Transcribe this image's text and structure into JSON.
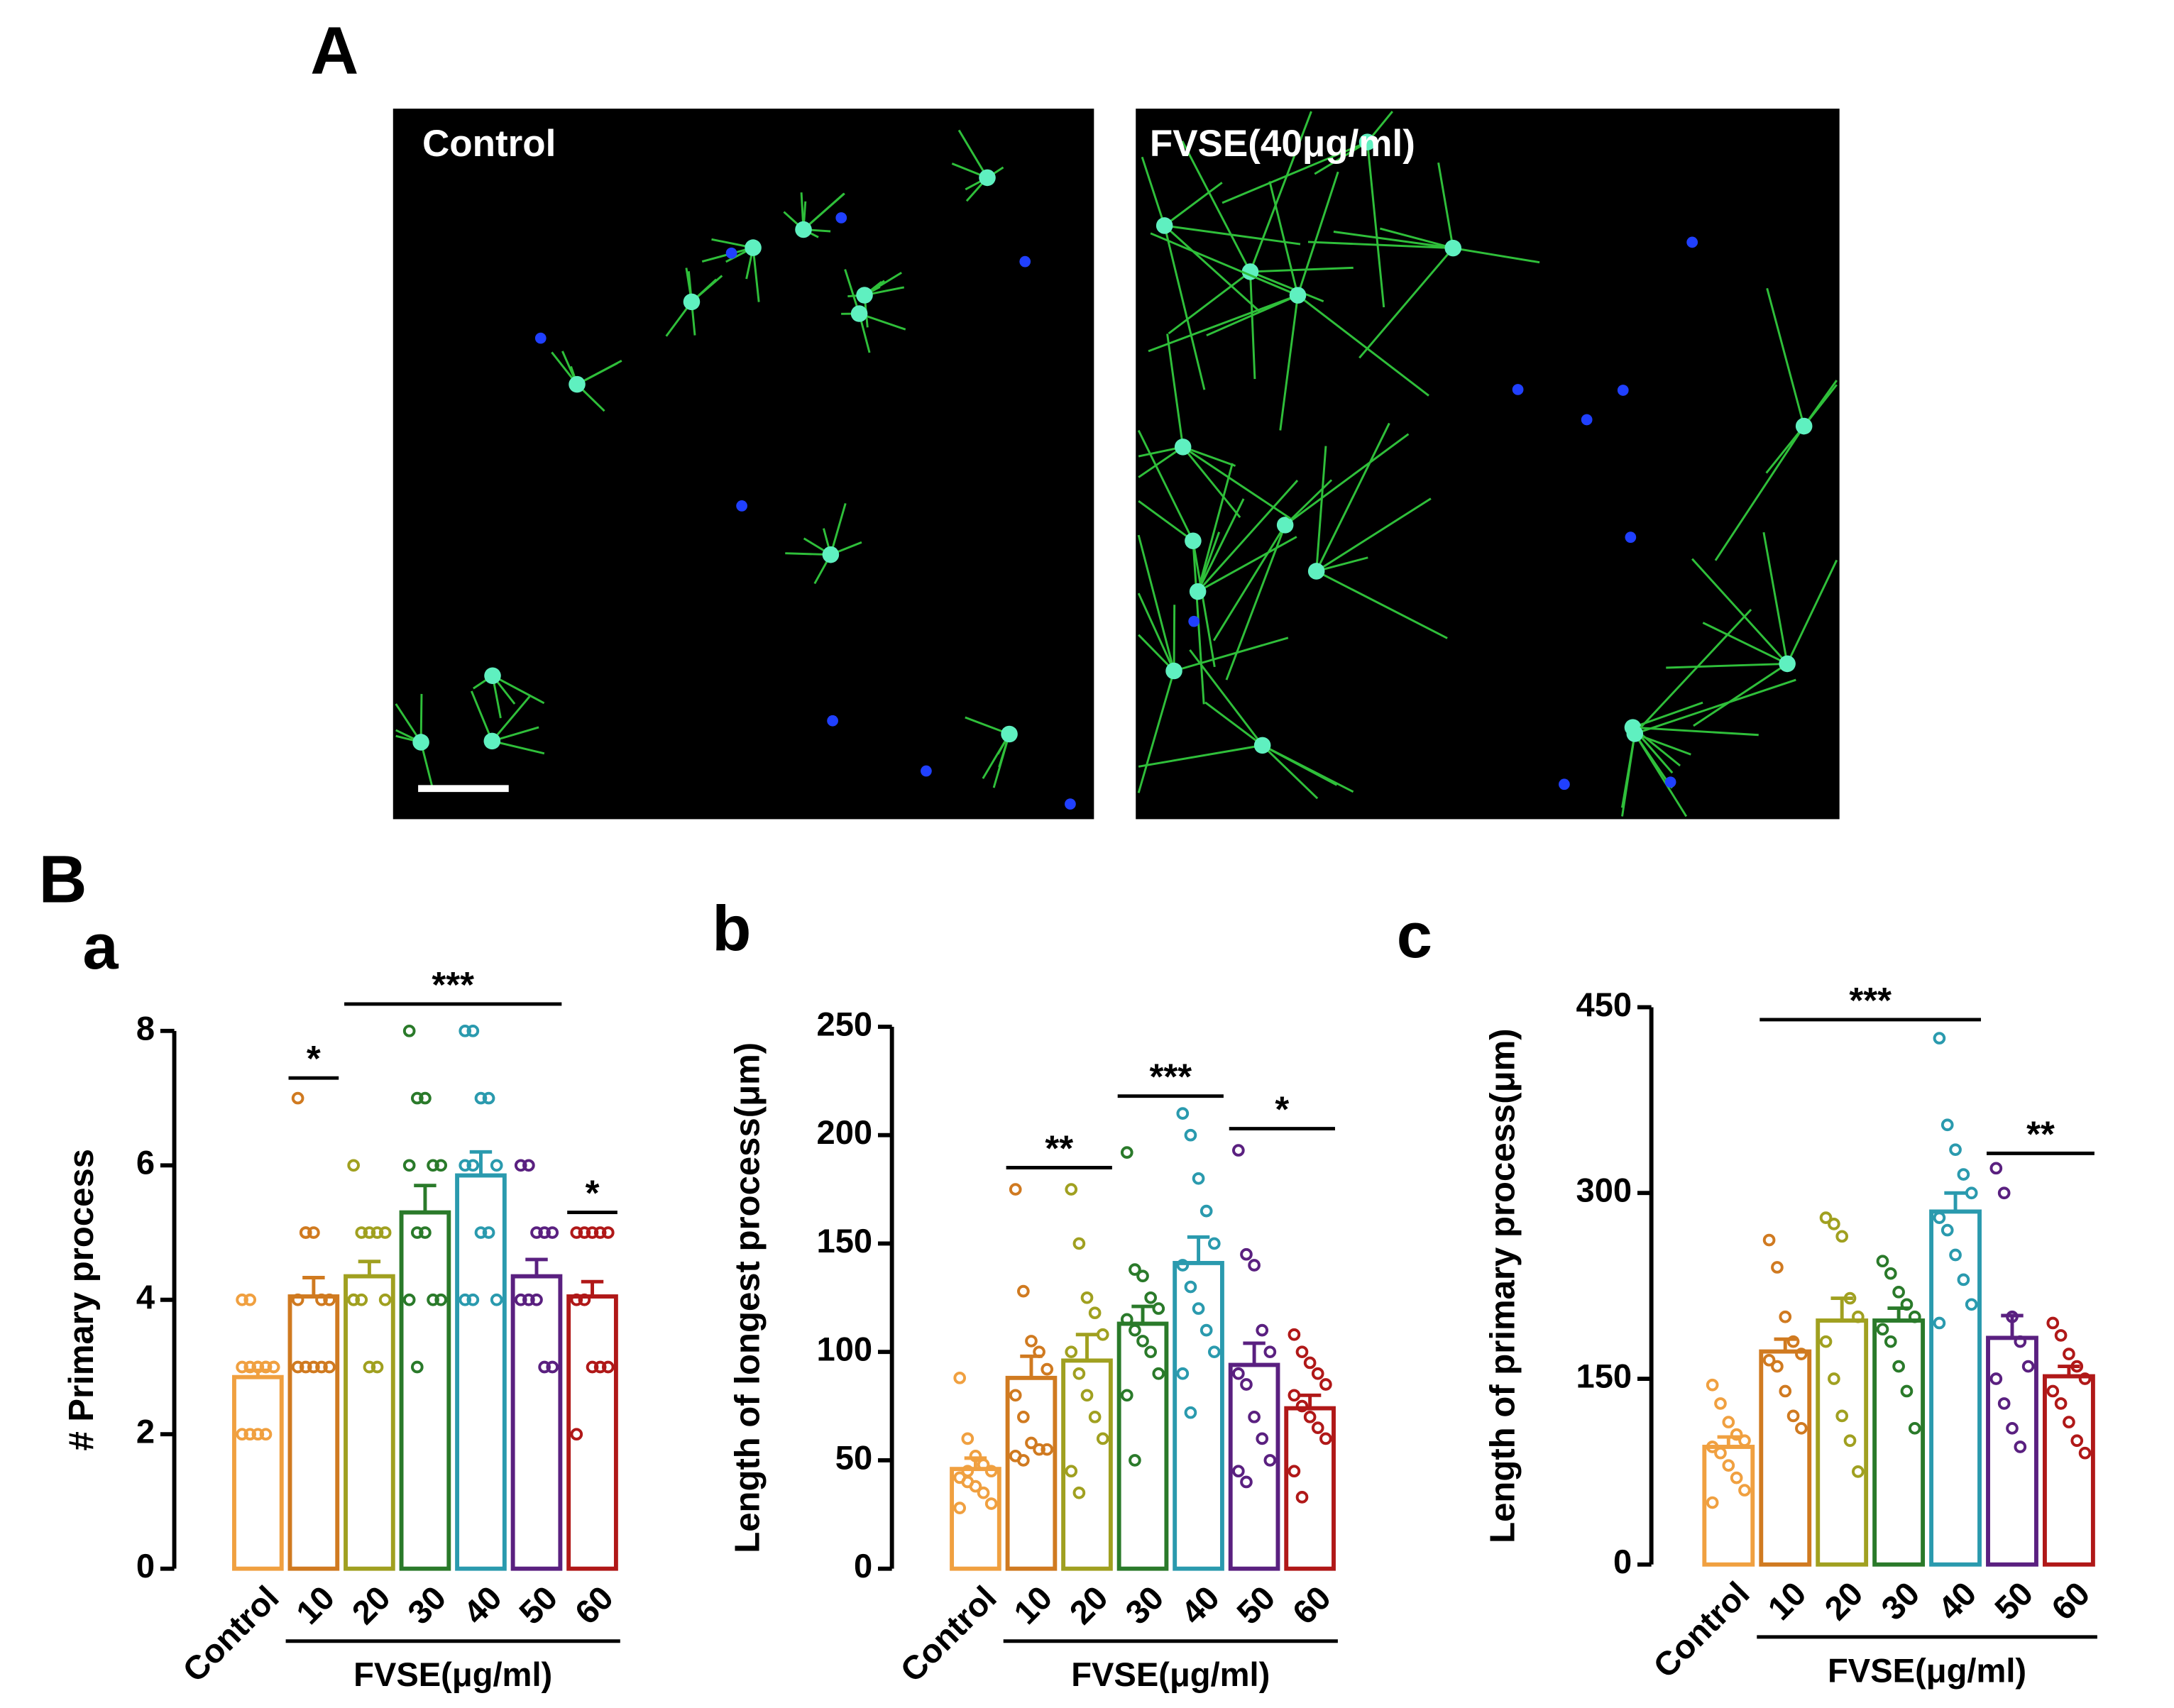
{
  "panels": {
    "A": {
      "label": "A",
      "images": [
        {
          "label": "Control"
        },
        {
          "label": "FVSE(40μg/ml)"
        }
      ]
    },
    "B": {
      "label": "B"
    }
  },
  "chart_data": [
    {
      "type": "bar",
      "panel_label": "a",
      "ylabel": "# Primary process",
      "categories": [
        "Control",
        "10",
        "20",
        "30",
        "40",
        "50",
        "60"
      ],
      "group_label": "FVSE(μg/ml)",
      "colors": [
        "#f0a040",
        "#d07a20",
        "#a0a020",
        "#2a7a2a",
        "#2a9aae",
        "#5a2080",
        "#b01818"
      ],
      "values": [
        2.85,
        4.05,
        4.35,
        5.3,
        5.85,
        4.35,
        4.05
      ],
      "errors": [
        0.1,
        0.28,
        0.22,
        0.4,
        0.35,
        0.25,
        0.22
      ],
      "points": [
        [
          4,
          4,
          3,
          3,
          3,
          3,
          3,
          3,
          3,
          3,
          2,
          2,
          2,
          2
        ],
        [
          7,
          5,
          5,
          4,
          4,
          3,
          3,
          3,
          3,
          3,
          4,
          5
        ],
        [
          6,
          5,
          5,
          5,
          4,
          4,
          4,
          3,
          3,
          5,
          4
        ],
        [
          8,
          7,
          7,
          6,
          6,
          6,
          5,
          5,
          4,
          4,
          4,
          3
        ],
        [
          8,
          8,
          7,
          7,
          6,
          6,
          6,
          5,
          5,
          4,
          4,
          4
        ],
        [
          6,
          6,
          5,
          5,
          5,
          4,
          4,
          4,
          3,
          3
        ],
        [
          5,
          5,
          5,
          5,
          5,
          4,
          4,
          3,
          3,
          3,
          2
        ]
      ],
      "significance": [
        {
          "label": "*",
          "span": [
            "10",
            "10"
          ],
          "y": 7.3
        },
        {
          "label": "***",
          "span": [
            "20",
            "50"
          ],
          "y": 8.4
        },
        {
          "label": "*",
          "span": [
            "60",
            "60"
          ],
          "y": 5.3
        }
      ],
      "ylim": [
        0,
        8
      ],
      "yticks": [
        0,
        2,
        4,
        6,
        8
      ]
    },
    {
      "type": "bar",
      "panel_label": "b",
      "ylabel": "Length of longest process(μm)",
      "categories": [
        "Control",
        "10",
        "20",
        "30",
        "40",
        "50",
        "60"
      ],
      "group_label": "FVSE(μg/ml)",
      "colors": [
        "#f0a040",
        "#d07a20",
        "#a0a020",
        "#2a7a2a",
        "#2a9aae",
        "#5a2080",
        "#b01818"
      ],
      "values": [
        46,
        88,
        96,
        113,
        141,
        94,
        74
      ],
      "errors": [
        5,
        10,
        12,
        8,
        12,
        10,
        6
      ],
      "points": [
        [
          88,
          60,
          52,
          48,
          45,
          42,
          40,
          38,
          35,
          30,
          28,
          45
        ],
        [
          175,
          128,
          105,
          100,
          92,
          80,
          70,
          58,
          55,
          55,
          52,
          50
        ],
        [
          175,
          150,
          125,
          118,
          108,
          100,
          90,
          80,
          70,
          60,
          45,
          35
        ],
        [
          192,
          138,
          135,
          125,
          120,
          115,
          110,
          105,
          100,
          90,
          80,
          50
        ],
        [
          210,
          200,
          180,
          165,
          150,
          140,
          130,
          120,
          110,
          100,
          90,
          72
        ],
        [
          193,
          145,
          140,
          110,
          100,
          90,
          85,
          70,
          60,
          50,
          45,
          40
        ],
        [
          108,
          100,
          95,
          90,
          85,
          80,
          75,
          70,
          65,
          60,
          45,
          33
        ]
      ],
      "significance": [
        {
          "label": "**",
          "span": [
            "10",
            "20"
          ],
          "y": 185
        },
        {
          "label": "***",
          "span": [
            "30",
            "40"
          ],
          "y": 218
        },
        {
          "label": "*",
          "span": [
            "50",
            "60"
          ],
          "y": 203
        }
      ],
      "ylim": [
        0,
        250
      ],
      "yticks": [
        0,
        50,
        100,
        150,
        200,
        250
      ]
    },
    {
      "type": "bar",
      "panel_label": "c",
      "ylabel": "Length of primary process(μm)",
      "categories": [
        "Control",
        "10",
        "20",
        "30",
        "40",
        "50",
        "60"
      ],
      "group_label": "FVSE(μg/ml)",
      "colors": [
        "#f0a040",
        "#d07a20",
        "#a0a020",
        "#2a7a2a",
        "#2a9aae",
        "#5a2080",
        "#b01818"
      ],
      "values": [
        95,
        172,
        197,
        197,
        285,
        183,
        152
      ],
      "errors": [
        8,
        10,
        18,
        10,
        15,
        18,
        8
      ],
      "points": [
        [
          145,
          130,
          115,
          105,
          100,
          95,
          90,
          80,
          70,
          60,
          50
        ],
        [
          262,
          240,
          200,
          180,
          170,
          165,
          160,
          140,
          120,
          110
        ],
        [
          280,
          275,
          265,
          215,
          200,
          180,
          150,
          120,
          100,
          75
        ],
        [
          245,
          235,
          220,
          210,
          200,
          190,
          180,
          160,
          140,
          110
        ],
        [
          425,
          355,
          335,
          315,
          300,
          280,
          270,
          250,
          230,
          210,
          195
        ],
        [
          320,
          300,
          200,
          180,
          160,
          150,
          130,
          110,
          95
        ],
        [
          195,
          185,
          170,
          160,
          150,
          140,
          130,
          115,
          100,
          90
        ]
      ],
      "significance": [
        {
          "label": "***",
          "span": [
            "10",
            "40"
          ],
          "y": 440
        },
        {
          "label": "**",
          "span": [
            "50",
            "60"
          ],
          "y": 332
        }
      ],
      "ylim": [
        0,
        450
      ],
      "yticks": [
        0,
        150,
        300,
        450
      ]
    }
  ]
}
